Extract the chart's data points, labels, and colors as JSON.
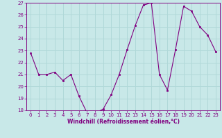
{
  "x": [
    0,
    1,
    2,
    3,
    4,
    5,
    6,
    7,
    8,
    9,
    10,
    11,
    12,
    13,
    14,
    15,
    16,
    17,
    18,
    19,
    20,
    21,
    22,
    23
  ],
  "y": [
    22.8,
    21.0,
    21.0,
    21.2,
    20.5,
    21.0,
    19.2,
    17.8,
    17.8,
    18.1,
    19.3,
    21.0,
    23.1,
    25.1,
    26.8,
    27.0,
    21.0,
    19.7,
    23.1,
    26.7,
    26.3,
    25.0,
    24.3,
    22.9
  ],
  "line_color": "#800080",
  "marker_color": "#800080",
  "bg_color": "#c8e8e8",
  "grid_color": "#b0d8d8",
  "xlabel": "Windchill (Refroidissement éolien,°C)",
  "ylim": [
    18,
    27
  ],
  "xlim": [
    -0.5,
    23.5
  ],
  "yticks": [
    18,
    19,
    20,
    21,
    22,
    23,
    24,
    25,
    26,
    27
  ],
  "xticks": [
    0,
    1,
    2,
    3,
    4,
    5,
    6,
    7,
    8,
    9,
    10,
    11,
    12,
    13,
    14,
    15,
    16,
    17,
    18,
    19,
    20,
    21,
    22,
    23
  ],
  "tick_fontsize": 5.0,
  "xlabel_fontsize": 5.5
}
